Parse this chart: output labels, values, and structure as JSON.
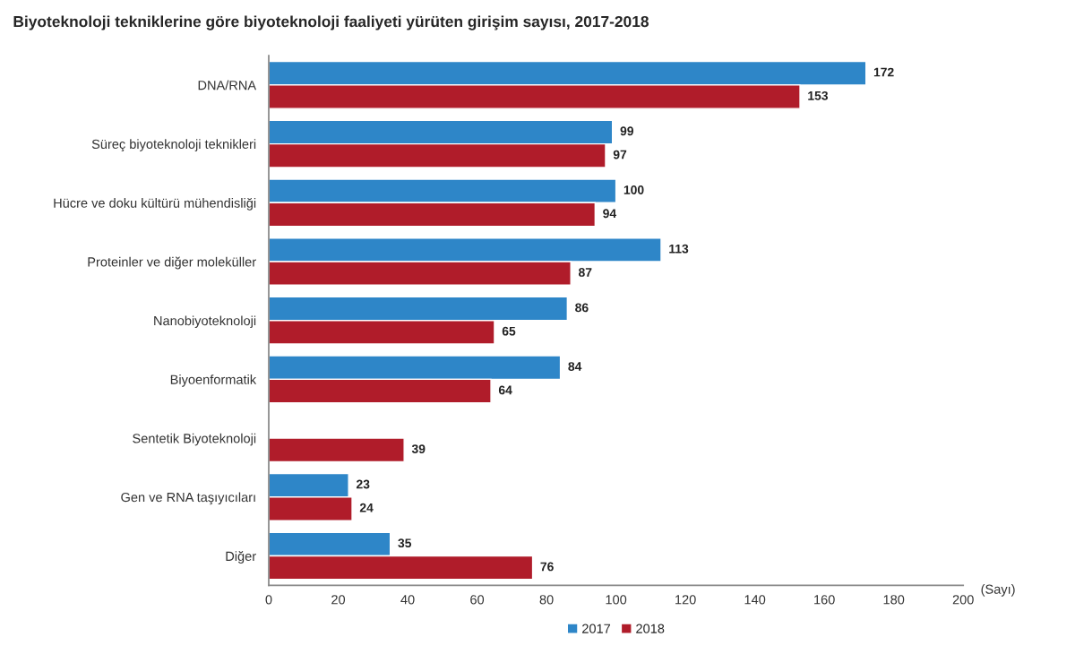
{
  "chart_data": {
    "type": "bar",
    "orientation": "horizontal",
    "title": "Biyoteknoloji tekniklerine göre biyoteknoloji faaliyeti yürüten girişim sayısı, 2017-2018",
    "categories": [
      "DNA/RNA",
      "Süreç biyoteknoloji teknikleri",
      "Hücre ve doku kültürü mühendisliği",
      "Proteinler ve diğer moleküller",
      "Nanobiyoteknoloji",
      "Biyoenformatik",
      "Sentetik Biyoteknoloji",
      "Gen ve RNA taşıyıcıları",
      "Diğer"
    ],
    "series": [
      {
        "name": "2017",
        "color": "#2e86c8",
        "values": [
          172,
          99,
          100,
          113,
          86,
          84,
          null,
          23,
          35
        ]
      },
      {
        "name": "2018",
        "color": "#b01c2a",
        "values": [
          153,
          97,
          94,
          87,
          65,
          64,
          39,
          24,
          76
        ]
      }
    ],
    "xlim": [
      0,
      200
    ],
    "xticks": [
      0,
      20,
      40,
      60,
      80,
      100,
      120,
      140,
      160,
      180,
      200
    ],
    "annotations": [
      "(Sayı)"
    ],
    "data_labels": true,
    "legend": "bottom",
    "grid": false
  }
}
